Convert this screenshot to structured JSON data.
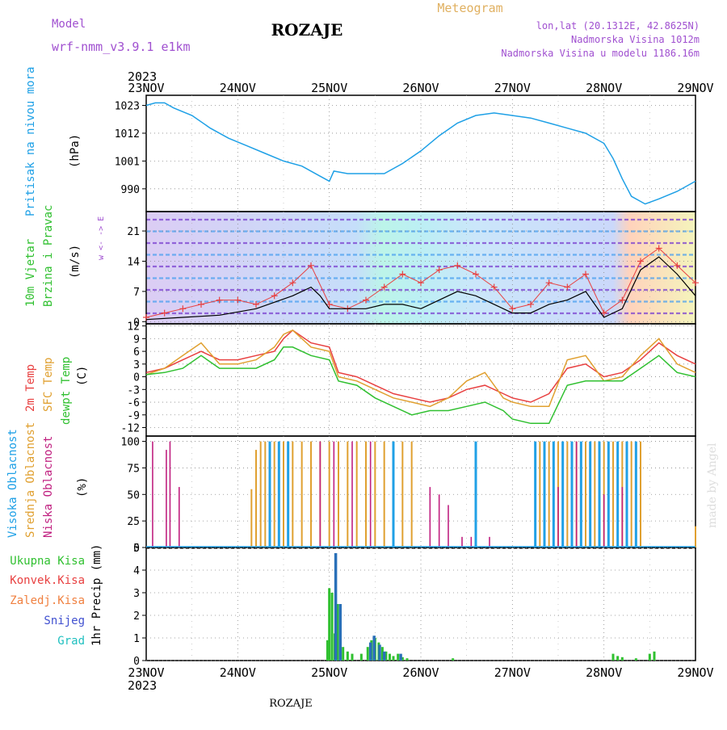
{
  "header": {
    "model_label": "Model",
    "model_name": "wrf-nmm_v3.9.1 e1km",
    "station": "ROZAJE",
    "app_title": "Meteogram",
    "coords": "lon,lat (20.1312E, 42.8625N)",
    "altitude": "Nadmorska Visina 1012m",
    "model_altitude": "Nadmorska Visina u modelu 1186.16m",
    "year_top": "2023",
    "year_bottom": "2023",
    "footer_station": "ROZAJE",
    "watermark": "made by Angel"
  },
  "colors": {
    "pressure": "#1ea0e6",
    "temp2m": "#e84040",
    "sfc": "#e0a030",
    "dewpt": "#30c030",
    "high_cloud": "#20a0e6",
    "mid_cloud": "#e0a030",
    "low_cloud": "#c02080",
    "total_precip": "#30c030",
    "convective": "#e84040",
    "frozen": "#f08040",
    "snow": "#4050d0",
    "hail": "#20c0c0",
    "wind_speed": "#e84040",
    "wind_gust": "#000000"
  },
  "x_axis": {
    "ticks": [
      "23NOV",
      "24NOV",
      "25NOV",
      "26NOV",
      "27NOV",
      "28NOV",
      "29NOV"
    ],
    "range_days": [
      0,
      6
    ]
  },
  "chart_data": [
    {
      "type": "line",
      "id": "pressure",
      "ylabel": "Pritisak na nivou mora",
      "unit": "(hPa)",
      "yticks": [
        990,
        1001,
        1012,
        1023
      ],
      "ylim": [
        981,
        1027
      ],
      "series": [
        {
          "x": [
            0,
            0.1,
            0.2,
            0.3,
            0.5,
            0.7,
            0.9,
            1.1,
            1.3,
            1.5,
            1.7,
            1.9,
            2.0,
            2.05,
            2.2,
            2.4,
            2.6,
            2.8,
            3.0,
            3.2,
            3.4,
            3.6,
            3.8,
            4.0,
            4.2,
            4.4,
            4.6,
            4.8,
            5.0,
            5.1,
            5.2,
            5.3,
            5.45,
            5.6,
            5.8,
            6.0
          ],
          "values": [
            1023,
            1024,
            1024,
            1022,
            1019,
            1014,
            1010,
            1007,
            1004,
            1001,
            999,
            995,
            993,
            997,
            996,
            996,
            996,
            1000,
            1005,
            1011,
            1016,
            1019,
            1020,
            1019,
            1018,
            1016,
            1014,
            1012,
            1008,
            1002,
            994,
            987,
            984,
            986,
            989,
            993
          ]
        }
      ]
    },
    {
      "type": "line",
      "id": "wind",
      "ylabel_line1": "10m Vjetar",
      "ylabel_line2": "Brzina i Pravac",
      "unit": "(m/s)",
      "compass_label": "w <- -> E",
      "yticks": [
        0,
        7,
        14,
        21
      ],
      "ylim": [
        -0.5,
        25.5
      ],
      "series": [
        {
          "name": "speed",
          "x": [
            0,
            0.2,
            0.4,
            0.6,
            0.8,
            1.0,
            1.2,
            1.4,
            1.6,
            1.8,
            2.0,
            2.2,
            2.4,
            2.6,
            2.8,
            3.0,
            3.2,
            3.4,
            3.6,
            3.8,
            4.0,
            4.2,
            4.4,
            4.6,
            4.8,
            5.0,
            5.2,
            5.4,
            5.6,
            5.8,
            6.0
          ],
          "values": [
            1,
            2,
            3,
            4,
            5,
            5,
            4,
            6,
            9,
            13,
            4,
            3,
            5,
            8,
            11,
            9,
            12,
            13,
            11,
            8,
            3,
            4,
            9,
            8,
            11,
            2,
            5,
            14,
            17,
            13,
            9
          ]
        },
        {
          "name": "gust",
          "x": [
            0,
            0.4,
            0.8,
            1.2,
            1.6,
            1.7,
            1.8,
            1.9,
            2.0,
            2.2,
            2.4,
            2.6,
            2.8,
            3.0,
            3.2,
            3.4,
            3.6,
            3.8,
            4.0,
            4.2,
            4.4,
            4.6,
            4.8,
            5.0,
            5.2,
            5.4,
            5.6,
            5.8,
            6.0
          ],
          "values": [
            0.5,
            1,
            1.5,
            3,
            6,
            7,
            8,
            6,
            3,
            3,
            3,
            4,
            4,
            3,
            5,
            7,
            6,
            4,
            2,
            2,
            4,
            5,
            7,
            1,
            3,
            12,
            15,
            11,
            6
          ]
        }
      ]
    },
    {
      "type": "line",
      "id": "temperature",
      "ylabel_lines": [
        "2m Temp",
        "SFC Temp",
        "dewpt Temp"
      ],
      "unit": "(C)",
      "yticks": [
        -12,
        -9,
        -6,
        -3,
        0,
        3,
        6,
        9,
        12
      ],
      "ylim": [
        -14,
        12.5
      ],
      "series": [
        {
          "name": "2m",
          "x": [
            0,
            0.2,
            0.4,
            0.6,
            0.8,
            1.0,
            1.2,
            1.4,
            1.5,
            1.6,
            1.8,
            2.0,
            2.1,
            2.3,
            2.5,
            2.7,
            2.9,
            3.1,
            3.3,
            3.5,
            3.7,
            3.9,
            4.0,
            4.2,
            4.4,
            4.6,
            4.8,
            5.0,
            5.2,
            5.4,
            5.6,
            5.8,
            6.0
          ],
          "values": [
            1,
            2,
            4,
            6,
            4,
            4,
            5,
            6,
            9,
            11,
            8,
            7,
            1,
            0,
            -2,
            -4,
            -5,
            -6,
            -5,
            -3,
            -2,
            -4,
            -5,
            -6,
            -4,
            2,
            3,
            0,
            1,
            4,
            8,
            5,
            3
          ]
        },
        {
          "name": "sfc",
          "x": [
            0,
            0.2,
            0.4,
            0.6,
            0.8,
            1.0,
            1.2,
            1.4,
            1.5,
            1.6,
            1.8,
            2.0,
            2.1,
            2.3,
            2.5,
            2.7,
            2.9,
            3.1,
            3.3,
            3.5,
            3.7,
            3.9,
            4.0,
            4.2,
            4.4,
            4.6,
            4.8,
            5.0,
            5.2,
            5.4,
            5.6,
            5.8,
            6.0
          ],
          "values": [
            0.5,
            2,
            5,
            8,
            3,
            3,
            4,
            7,
            10,
            11,
            7,
            6,
            0,
            -1,
            -3,
            -5,
            -6,
            -7,
            -5,
            -1,
            1,
            -5,
            -6,
            -7,
            -7,
            4,
            5,
            -1,
            0,
            5,
            9,
            3,
            1
          ]
        },
        {
          "name": "dewpt",
          "x": [
            0,
            0.2,
            0.4,
            0.6,
            0.8,
            1.0,
            1.2,
            1.4,
            1.5,
            1.6,
            1.8,
            2.0,
            2.1,
            2.3,
            2.5,
            2.7,
            2.9,
            3.1,
            3.3,
            3.5,
            3.7,
            3.9,
            4.0,
            4.2,
            4.4,
            4.6,
            4.8,
            5.0,
            5.2,
            5.4,
            5.6,
            5.8,
            6.0
          ],
          "values": [
            0.5,
            1,
            2,
            5,
            2,
            2,
            2,
            4,
            7,
            7,
            5,
            4,
            -1,
            -2,
            -5,
            -7,
            -9,
            -8,
            -8,
            -7,
            -6,
            -8,
            -10,
            -11,
            -11,
            -2,
            -1,
            -1,
            -1,
            2,
            5,
            1,
            0
          ]
        }
      ]
    },
    {
      "type": "bar",
      "id": "clouds",
      "ylabel_lines": [
        "Visoka Oblacnost",
        "Srednja Oblacnost",
        "Niska Oblacnost"
      ],
      "unit": "(%)",
      "yticks": [
        0,
        25,
        50,
        75,
        100
      ],
      "ylim": [
        0,
        105
      ],
      "series": [
        {
          "name": "high",
          "x": [
            1.35,
            1.45,
            1.55,
            2.7,
            3.6,
            4.25,
            4.35,
            4.45,
            4.55,
            4.65,
            4.75,
            4.85,
            4.95,
            5.05,
            5.15,
            5.25,
            5.35
          ],
          "values": [
            100,
            100,
            100,
            100,
            100,
            100,
            100,
            100,
            100,
            100,
            100,
            100,
            100,
            100,
            100,
            100,
            100
          ]
        },
        {
          "name": "mid",
          "x": [
            1.15,
            1.2,
            1.25,
            1.3,
            1.4,
            1.5,
            1.6,
            1.7,
            1.8,
            1.9,
            2.0,
            2.1,
            2.2,
            2.3,
            2.4,
            2.5,
            2.6,
            2.7,
            2.8,
            2.9,
            4.3,
            4.4,
            4.5,
            4.6,
            4.7,
            4.8,
            4.9,
            5.0,
            5.1,
            5.2,
            5.3,
            5.4,
            6.0
          ],
          "values": [
            55,
            92,
            100,
            100,
            100,
            100,
            100,
            100,
            100,
            100,
            100,
            100,
            100,
            100,
            100,
            100,
            100,
            100,
            100,
            100,
            100,
            100,
            100,
            100,
            100,
            100,
            100,
            100,
            100,
            100,
            100,
            100,
            20
          ]
        },
        {
          "name": "low",
          "x": [
            0.07,
            0.22,
            0.26,
            0.36,
            1.9,
            2.05,
            2.25,
            2.45,
            3.1,
            3.2,
            3.3,
            3.45,
            3.55,
            3.75,
            4.5,
            4.7,
            5.0,
            5.2
          ],
          "values": [
            100,
            92,
            100,
            57,
            100,
            100,
            100,
            100,
            57,
            50,
            40,
            10,
            10,
            10,
            57,
            100,
            50,
            57
          ]
        }
      ]
    },
    {
      "type": "bar",
      "id": "precip",
      "legend": [
        "Ukupna Kisa",
        "Konvek.Kisa",
        "Zaledj.Kisa",
        "Snijeg",
        "Grad"
      ],
      "ylabel": "1hr Precip (mm)",
      "yticks": [
        0,
        1,
        2,
        3,
        4,
        5
      ],
      "ylim": [
        0,
        5
      ],
      "series": [
        {
          "name": "total",
          "x": [
            1.98,
            2.0,
            2.03,
            2.06,
            2.09,
            2.12,
            2.15,
            2.2,
            2.25,
            2.35,
            2.42,
            2.46,
            2.5,
            2.54,
            2.58,
            2.62,
            2.66,
            2.7,
            2.75,
            2.8,
            2.85,
            3.35,
            5.1,
            5.15,
            5.2,
            5.35,
            5.5,
            5.55
          ],
          "values": [
            0.9,
            3.2,
            3.0,
            1.2,
            2.5,
            0.8,
            0.6,
            0.4,
            0.3,
            0.3,
            0.6,
            0.9,
            1.0,
            0.8,
            0.6,
            0.4,
            0.3,
            0.2,
            0.3,
            0.15,
            0.1,
            0.1,
            0.3,
            0.2,
            0.15,
            0.1,
            0.3,
            0.4
          ]
        },
        {
          "name": "snow",
          "x": [
            2.07,
            2.12,
            2.45,
            2.49,
            2.55,
            2.6,
            2.78
          ],
          "values": [
            4.75,
            2.5,
            0.8,
            1.1,
            0.7,
            0.4,
            0.3
          ]
        }
      ]
    }
  ]
}
